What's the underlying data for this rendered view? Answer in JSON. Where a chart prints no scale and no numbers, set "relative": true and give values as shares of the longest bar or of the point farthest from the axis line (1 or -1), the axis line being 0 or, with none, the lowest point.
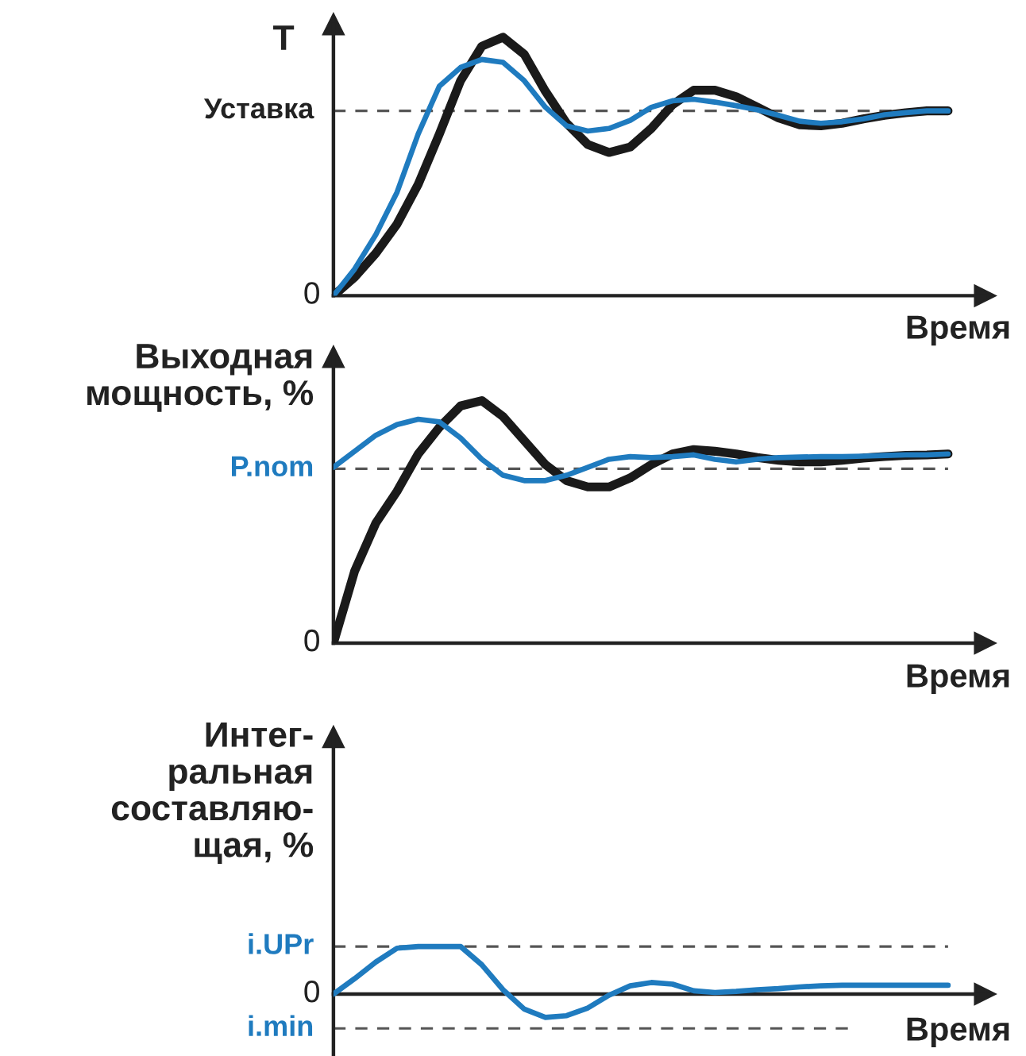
{
  "chart_data": [
    {
      "type": "line",
      "relative": true,
      "ylabel": "T",
      "xlabel": "Время",
      "categories": [
        null,
        null,
        null,
        null,
        null,
        null,
        null,
        null,
        null,
        null,
        null,
        null,
        null,
        null,
        null,
        null,
        null,
        null,
        null,
        null,
        null,
        null,
        null,
        null,
        null,
        null,
        null,
        null,
        null,
        null
      ],
      "series": [
        {
          "color": "#1a1a1a",
          "values": [
            0,
            0.072,
            0.164,
            0.277,
            0.431,
            0.626,
            0.832,
            0.965,
            1.0,
            0.934,
            0.791,
            0.667,
            0.585,
            0.554,
            0.575,
            0.647,
            0.739,
            0.795,
            0.795,
            0.77,
            0.729,
            0.688,
            0.661,
            0.657,
            0.667,
            0.684,
            0.698,
            0.708,
            0.715,
            0.715
          ]
        },
        {
          "color": "#1f7bbf",
          "values": [
            0,
            0.103,
            0.236,
            0.4,
            0.626,
            0.811,
            0.883,
            0.914,
            0.903,
            0.832,
            0.729,
            0.657,
            0.637,
            0.647,
            0.678,
            0.729,
            0.754,
            0.76,
            0.749,
            0.735,
            0.719,
            0.698,
            0.675,
            0.667,
            0.673,
            0.684,
            0.7,
            0.708,
            0.715,
            0.715
          ]
        }
      ],
      "ref_lines": [
        {
          "axis": "y",
          "value": 0.715,
          "label": "Уставка",
          "color": "#555555",
          "line_style": "dashed"
        }
      ],
      "annotations": [
        "0"
      ]
    },
    {
      "type": "line",
      "relative": true,
      "ylabel": "Выходная\nмощность, %",
      "xlabel": "Время",
      "categories": [
        null,
        null,
        null,
        null,
        null,
        null,
        null,
        null,
        null,
        null,
        null,
        null,
        null,
        null,
        null,
        null,
        null,
        null,
        null,
        null,
        null,
        null,
        null,
        null,
        null,
        null,
        null,
        null,
        null,
        null
      ],
      "series": [
        {
          "color": "#1a1a1a",
          "values": [
            0,
            0.297,
            0.495,
            0.626,
            0.78,
            0.89,
            0.978,
            1.0,
            0.934,
            0.835,
            0.736,
            0.67,
            0.644,
            0.644,
            0.681,
            0.736,
            0.78,
            0.798,
            0.791,
            0.78,
            0.765,
            0.754,
            0.747,
            0.747,
            0.754,
            0.763,
            0.769,
            0.774,
            0.776,
            0.78
          ]
        },
        {
          "color": "#1f7bbf",
          "values": [
            0.725,
            0.791,
            0.857,
            0.901,
            0.923,
            0.912,
            0.846,
            0.758,
            0.692,
            0.67,
            0.67,
            0.692,
            0.725,
            0.758,
            0.769,
            0.765,
            0.769,
            0.776,
            0.758,
            0.747,
            0.758,
            0.765,
            0.767,
            0.769,
            0.769,
            0.771,
            0.774,
            0.776,
            0.776,
            0.78
          ]
        }
      ],
      "ref_lines": [
        {
          "axis": "y",
          "value": 0.719,
          "label": "P.nom",
          "color": "#555555",
          "line_style": "dashed"
        }
      ],
      "annotations": [
        "0"
      ]
    },
    {
      "type": "line",
      "relative": true,
      "ylabel": "Интег-\nральная\nсоставляю-\nщая, %",
      "xlabel": "Время",
      "categories": [
        null,
        null,
        null,
        null,
        null,
        null,
        null,
        null,
        null,
        null,
        null,
        null,
        null,
        null,
        null,
        null,
        null,
        null,
        null,
        null,
        null,
        null,
        null,
        null,
        null,
        null,
        null,
        null,
        null,
        null
      ],
      "series": [
        {
          "color": "#1f7bbf",
          "values": [
            0,
            0.326,
            0.674,
            0.965,
            1,
            1,
            1,
            0.616,
            0.093,
            -0.314,
            -0.488,
            -0.453,
            -0.291,
            -0.023,
            0.174,
            0.244,
            0.209,
            0.07,
            0.035,
            0.058,
            0.093,
            0.116,
            0.151,
            0.174,
            0.186,
            0.186,
            0.186,
            0.186,
            0.186,
            0.186
          ]
        }
      ],
      "ref_lines": [
        {
          "axis": "y",
          "value": 1,
          "label": "i.UPr",
          "color": "#555555",
          "line_style": "dashed"
        },
        {
          "axis": "y",
          "value": -0.721,
          "label": "i.min",
          "color": "#555555",
          "line_style": "dashed"
        }
      ],
      "annotations": [
        "0"
      ]
    }
  ]
}
